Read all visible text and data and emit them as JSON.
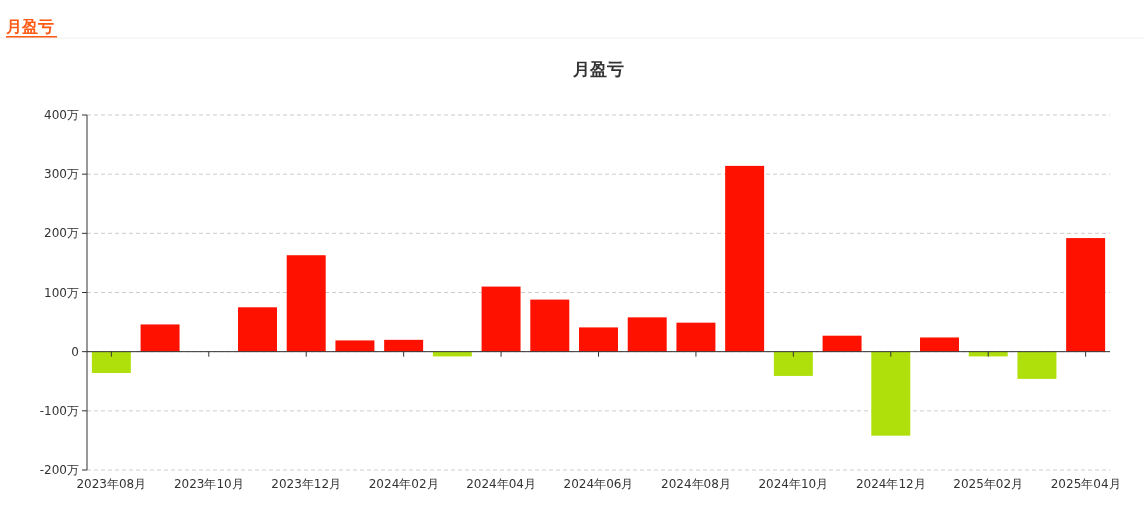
{
  "chart_data": {
    "type": "bar",
    "title": "月盈亏",
    "annotations": [
      "月盈亏"
    ],
    "categories": [
      "2023年08月",
      null,
      "2023年10月",
      null,
      "2023年12月",
      null,
      "2024年02月",
      null,
      "2024年04月",
      null,
      "2024年06月",
      null,
      "2024年08月",
      null,
      "2024年10月",
      null,
      "2024年12月",
      null,
      "2025年02月",
      null,
      "2025年04月"
    ],
    "values": [
      -36,
      46,
      0,
      75,
      163,
      19,
      20,
      -8,
      110,
      88,
      41,
      58,
      49,
      314,
      -41,
      27,
      -142,
      24,
      -8,
      -46,
      192
    ],
    "colors": [
      "#b0e00c",
      "#ff1100",
      "#ff1100",
      "#ff1100",
      "#ff1100",
      "#ff1100",
      "#ff1100",
      "#b0e00c",
      "#ff1100",
      "#ff1100",
      "#ff1100",
      "#ff1100",
      "#ff1100",
      "#ff1100",
      "#b0e00c",
      "#ff1100",
      "#b0e00c",
      "#ff1100",
      "#b0e00c",
      "#b0e00c",
      "#ff1100"
    ],
    "ylim": [
      -200,
      400
    ],
    "yticks": [
      {
        "value": -200,
        "label": "-200万"
      },
      {
        "value": -100,
        "label": "-100万"
      },
      {
        "value": 0,
        "label": "0"
      },
      {
        "value": 100,
        "label": "100万"
      },
      {
        "value": 200,
        "label": "200万"
      },
      {
        "value": 300,
        "label": "300万"
      },
      {
        "value": 400,
        "label": "400万"
      }
    ],
    "grid": "y"
  }
}
